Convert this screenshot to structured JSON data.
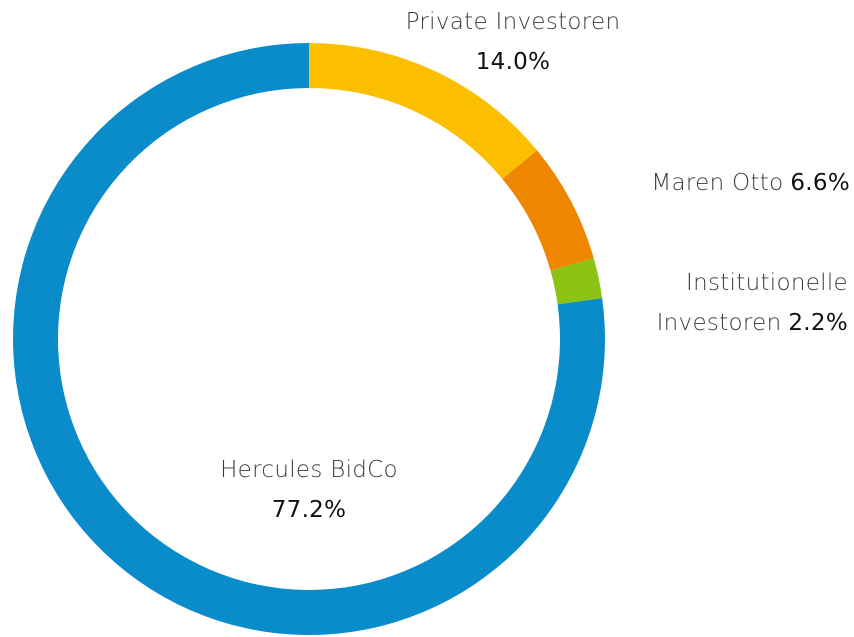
{
  "chart_data": {
    "type": "donut",
    "categories": [
      "Private Investoren",
      "Maren Otto",
      "Institutionelle Investoren",
      "Hercules BidCo"
    ],
    "values": [
      14.0,
      6.6,
      2.2,
      77.2
    ],
    "value_labels": [
      "14.0%",
      "6.6%",
      "2.2%",
      "77.2%"
    ],
    "colors": [
      "#fbbf00",
      "#ee8600",
      "#8cc314",
      "#0a8ccb"
    ]
  }
}
